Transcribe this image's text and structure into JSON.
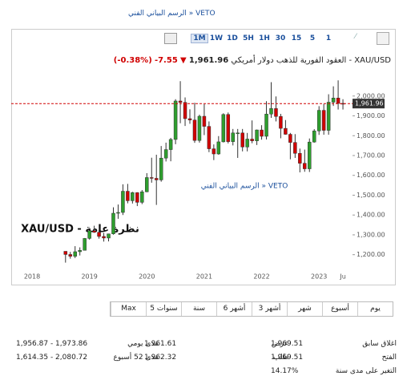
{
  "header": {
    "link": "الرسم البياني الفني » VETO",
    "periods": [
      "1M",
      "1W",
      "1D",
      "5H",
      "1H",
      "30",
      "15",
      "5",
      "1"
    ]
  },
  "quote": {
    "name": "العقود الفورية للذهب دولار أمريكي - XAU/USD",
    "price": "1,961.96",
    "change": "-7.55",
    "change_pct": "(-0.38%)"
  },
  "chart_data": {
    "type": "candlestick",
    "categories": [
      "2018",
      null,
      null,
      null,
      null,
      null,
      null,
      null,
      null,
      null,
      null,
      null,
      "2019",
      null,
      null,
      null,
      null,
      null,
      null,
      null,
      null,
      null,
      null,
      null,
      "2020",
      null,
      null,
      null,
      null,
      null,
      null,
      null,
      null,
      null,
      null,
      null,
      "2021",
      null,
      null,
      null,
      null,
      null,
      null,
      null,
      null,
      null,
      null,
      null,
      "2022",
      null,
      null,
      null,
      null,
      null,
      null,
      null,
      null,
      null,
      null,
      null,
      "2023",
      null,
      null,
      null,
      null,
      "Ju"
    ],
    "open": [
      null,
      null,
      null,
      null,
      null,
      null,
      null,
      1217,
      1201,
      1192,
      1215,
      1222,
      1282,
      1321,
      1313,
      1292,
      1284,
      1305,
      1409,
      1413,
      1520,
      1472,
      1513,
      1464,
      1517,
      1589,
      1585,
      1577,
      1687,
      1730,
      1781,
      1975,
      1968,
      1886,
      1879,
      1776,
      1898,
      1847,
      1734,
      1708,
      1769,
      1907,
      1770,
      1814,
      1814,
      1743,
      1783,
      1774,
      1829,
      1797,
      1909,
      1937,
      1897,
      1837,
      1807,
      1766,
      1711,
      1661,
      1633,
      1768,
      1824,
      1928,
      1827,
      1969,
      1990,
      1963
    ],
    "high": [
      null,
      null,
      null,
      null,
      null,
      null,
      null,
      1217,
      1214,
      1243,
      1237,
      1284,
      1326,
      1346,
      1324,
      1310,
      1306,
      1439,
      1453,
      1555,
      1557,
      1517,
      1515,
      1526,
      1611,
      1689,
      1704,
      1748,
      1765,
      1789,
      1984,
      2075,
      1993,
      1933,
      1966,
      1906,
      1959,
      1872,
      1756,
      1798,
      1913,
      1917,
      1834,
      1834,
      1834,
      1814,
      1877,
      1831,
      1853,
      1974,
      2070,
      1998,
      1910,
      1879,
      1814,
      1808,
      1735,
      1730,
      1786,
      1833,
      1949,
      1960,
      2009,
      2049,
      2079,
      1984
    ],
    "low": [
      null,
      null,
      null,
      null,
      null,
      null,
      null,
      1160,
      1180,
      1183,
      1196,
      1221,
      1276,
      1310,
      1281,
      1266,
      1267,
      1301,
      1381,
      1400,
      1459,
      1458,
      1445,
      1455,
      1515,
      1563,
      1451,
      1568,
      1670,
      1671,
      1757,
      1863,
      1849,
      1860,
      1764,
      1765,
      1803,
      1717,
      1677,
      1704,
      1766,
      1761,
      1751,
      1688,
      1721,
      1721,
      1762,
      1753,
      1780,
      1781,
      1890,
      1872,
      1787,
      1805,
      1681,
      1688,
      1615,
      1618,
      1617,
      1765,
      1804,
      1805,
      1805,
      1950,
      1932,
      1932
    ],
    "close": [
      null,
      null,
      null,
      null,
      null,
      null,
      null,
      1201,
      1192,
      1215,
      1222,
      1282,
      1321,
      1313,
      1292,
      1284,
      1305,
      1409,
      1413,
      1520,
      1472,
      1513,
      1464,
      1517,
      1589,
      1585,
      1577,
      1687,
      1730,
      1781,
      1975,
      1968,
      1886,
      1879,
      1776,
      1898,
      1847,
      1734,
      1708,
      1769,
      1907,
      1770,
      1814,
      1814,
      1743,
      1783,
      1774,
      1829,
      1797,
      1909,
      1937,
      1897,
      1837,
      1807,
      1766,
      1711,
      1661,
      1633,
      1768,
      1824,
      1928,
      1827,
      1969,
      1990,
      1963,
      1961.96
    ],
    "up_color": "#2e9e2e",
    "down_color": "#d00000",
    "ylim": [
      1130,
      2080
    ],
    "yticks": [
      {
        "value": 1200,
        "label": "1,200.00"
      },
      {
        "value": 1300,
        "label": "1,300.00"
      },
      {
        "value": 1400,
        "label": "1,400.00"
      },
      {
        "value": 1500,
        "label": "1,500.00"
      },
      {
        "value": 1600,
        "label": "1,600.00"
      },
      {
        "value": 1700,
        "label": "1,700.00"
      },
      {
        "value": 1800,
        "label": "1,800.00"
      },
      {
        "value": 1900,
        "label": "1,900.00"
      },
      {
        "value": 2000,
        "label": "2,000.00"
      }
    ],
    "grid": false,
    "price_line": {
      "value": 1961.96,
      "label": "1,961.96"
    },
    "watermark": "الرسم البياني الفني » VETO",
    "overview": "XAU/USD - نظرة عامة"
  },
  "ranges": [
    "يوم",
    "أسبوع",
    "شهر",
    "3 أشهر",
    "6 أشهر",
    "سنة",
    "5 سنوات",
    "Max"
  ],
  "stats": [
    [
      {
        "label": "اغلاق سابق",
        "value": "1,969.51"
      },
      {
        "label": "عرض",
        "value": "1,961.61"
      },
      {
        "label": "مدى يومي",
        "value": "1,956.87 - 1,973.86"
      }
    ],
    [
      {
        "label": "الفتح",
        "value": "1,969.51"
      },
      {
        "label": "طلب",
        "value": "1,962.32"
      },
      {
        "label": "مدى 52 أسبوع",
        "value": "1,614.35 - 2,080.72"
      }
    ],
    [
      {
        "label": "التغير على مدى سنة",
        "value": "14.17%"
      }
    ]
  ]
}
